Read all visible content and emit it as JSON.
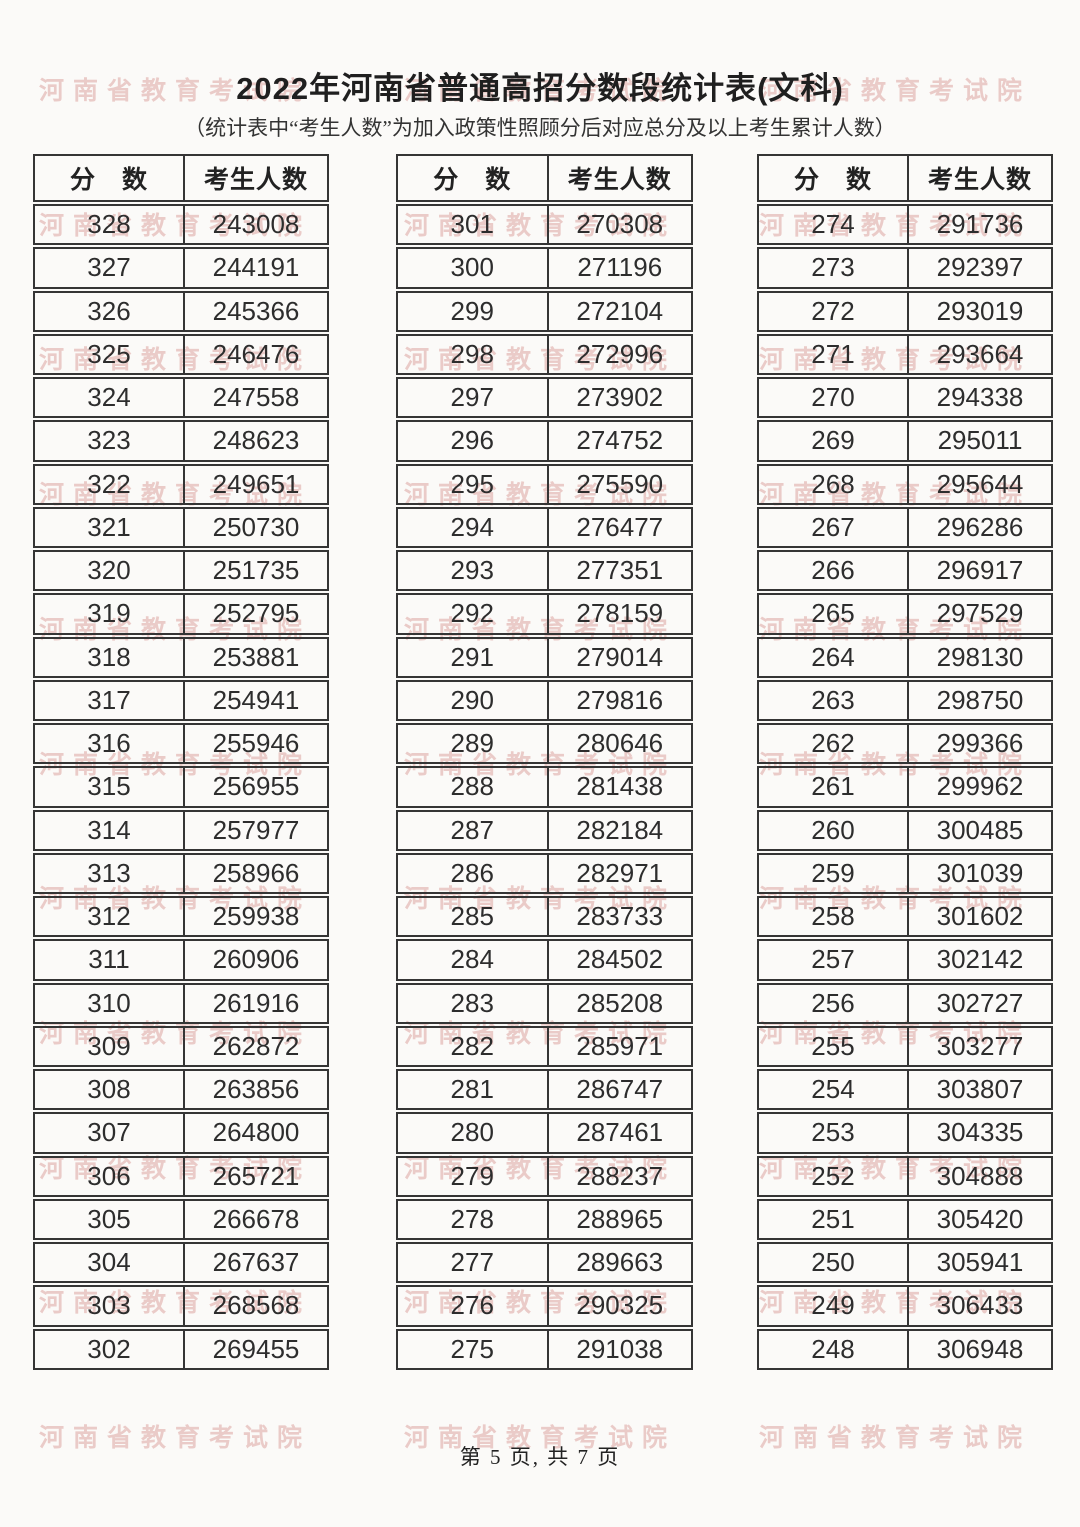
{
  "title": "2022年河南省普通高招分数段统计表(文科)",
  "subtitle": "（统计表中“考生人数”为加入政策性照顾分后对应总分及以上考生累计人数）",
  "watermark": {
    "text": "河南省教育考试院",
    "color": "#e8c3c0"
  },
  "columns": {
    "score": "分　数",
    "count": "考生人数"
  },
  "tables": [
    {
      "rows": [
        [
          "328",
          "243008"
        ],
        [
          "327",
          "244191"
        ],
        [
          "326",
          "245366"
        ],
        [
          "325",
          "246476"
        ],
        [
          "324",
          "247558"
        ],
        [
          "323",
          "248623"
        ],
        [
          "322",
          "249651"
        ],
        [
          "321",
          "250730"
        ],
        [
          "320",
          "251735"
        ],
        [
          "319",
          "252795"
        ],
        [
          "318",
          "253881"
        ],
        [
          "317",
          "254941"
        ],
        [
          "316",
          "255946"
        ],
        [
          "315",
          "256955"
        ],
        [
          "314",
          "257977"
        ],
        [
          "313",
          "258966"
        ],
        [
          "312",
          "259938"
        ],
        [
          "311",
          "260906"
        ],
        [
          "310",
          "261916"
        ],
        [
          "309",
          "262872"
        ],
        [
          "308",
          "263856"
        ],
        [
          "307",
          "264800"
        ],
        [
          "306",
          "265721"
        ],
        [
          "305",
          "266678"
        ],
        [
          "304",
          "267637"
        ],
        [
          "303",
          "268568"
        ],
        [
          "302",
          "269455"
        ]
      ]
    },
    {
      "rows": [
        [
          "301",
          "270308"
        ],
        [
          "300",
          "271196"
        ],
        [
          "299",
          "272104"
        ],
        [
          "298",
          "272996"
        ],
        [
          "297",
          "273902"
        ],
        [
          "296",
          "274752"
        ],
        [
          "295",
          "275590"
        ],
        [
          "294",
          "276477"
        ],
        [
          "293",
          "277351"
        ],
        [
          "292",
          "278159"
        ],
        [
          "291",
          "279014"
        ],
        [
          "290",
          "279816"
        ],
        [
          "289",
          "280646"
        ],
        [
          "288",
          "281438"
        ],
        [
          "287",
          "282184"
        ],
        [
          "286",
          "282971"
        ],
        [
          "285",
          "283733"
        ],
        [
          "284",
          "284502"
        ],
        [
          "283",
          "285208"
        ],
        [
          "282",
          "285971"
        ],
        [
          "281",
          "286747"
        ],
        [
          "280",
          "287461"
        ],
        [
          "279",
          "288237"
        ],
        [
          "278",
          "288965"
        ],
        [
          "277",
          "289663"
        ],
        [
          "276",
          "290325"
        ],
        [
          "275",
          "291038"
        ]
      ]
    },
    {
      "rows": [
        [
          "274",
          "291736"
        ],
        [
          "273",
          "292397"
        ],
        [
          "272",
          "293019"
        ],
        [
          "271",
          "293664"
        ],
        [
          "270",
          "294338"
        ],
        [
          "269",
          "295011"
        ],
        [
          "268",
          "295644"
        ],
        [
          "267",
          "296286"
        ],
        [
          "266",
          "296917"
        ],
        [
          "265",
          "297529"
        ],
        [
          "264",
          "298130"
        ],
        [
          "263",
          "298750"
        ],
        [
          "262",
          "299366"
        ],
        [
          "261",
          "299962"
        ],
        [
          "260",
          "300485"
        ],
        [
          "259",
          "301039"
        ],
        [
          "258",
          "301602"
        ],
        [
          "257",
          "302142"
        ],
        [
          "256",
          "302727"
        ],
        [
          "255",
          "303277"
        ],
        [
          "254",
          "303807"
        ],
        [
          "253",
          "304335"
        ],
        [
          "252",
          "304888"
        ],
        [
          "251",
          "305420"
        ],
        [
          "250",
          "305941"
        ],
        [
          "249",
          "306433"
        ],
        [
          "248",
          "306948"
        ]
      ]
    }
  ],
  "footer": {
    "page_info": "第 5 页, 共 7 页"
  }
}
